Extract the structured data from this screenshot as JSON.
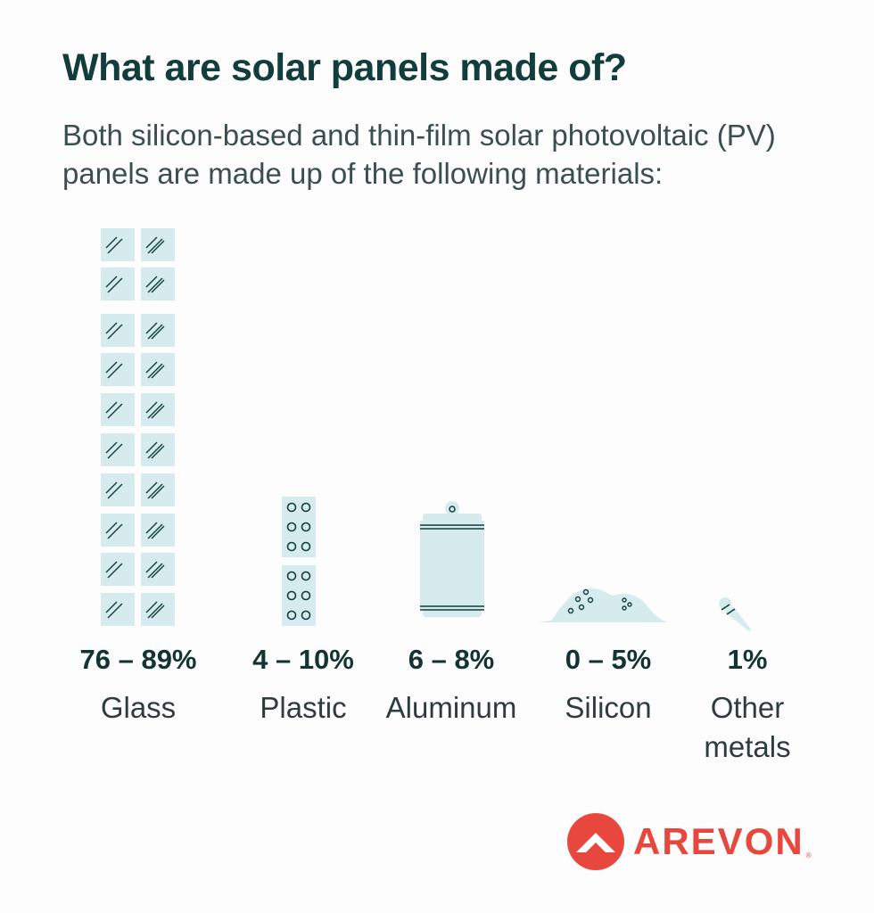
{
  "header": {
    "title": "What are solar panels made of?",
    "subtitle": "Both silicon-based and thin-film solar photovoltaic (PV) panels are made up of the following materials:"
  },
  "materials": [
    {
      "percent": "76 – 89%",
      "name": "Glass",
      "icon": "glass-panes-icon"
    },
    {
      "percent": "4 – 10%",
      "name": "Plastic",
      "icon": "plastic-pellets-icon"
    },
    {
      "percent": "6 – 8%",
      "name": "Aluminum",
      "icon": "aluminum-can-icon"
    },
    {
      "percent": "0 – 5%",
      "name": "Silicon",
      "icon": "silicon-pile-icon"
    },
    {
      "percent": "1%",
      "name": "Other\nmetals",
      "icon": "metal-nail-icon"
    }
  ],
  "brand": {
    "name": "AREVON",
    "registered": "®",
    "color": "#e8473e"
  },
  "colors": {
    "icon_fill": "#d6ebee",
    "icon_stroke": "#123d3c",
    "title": "#113d3c"
  }
}
